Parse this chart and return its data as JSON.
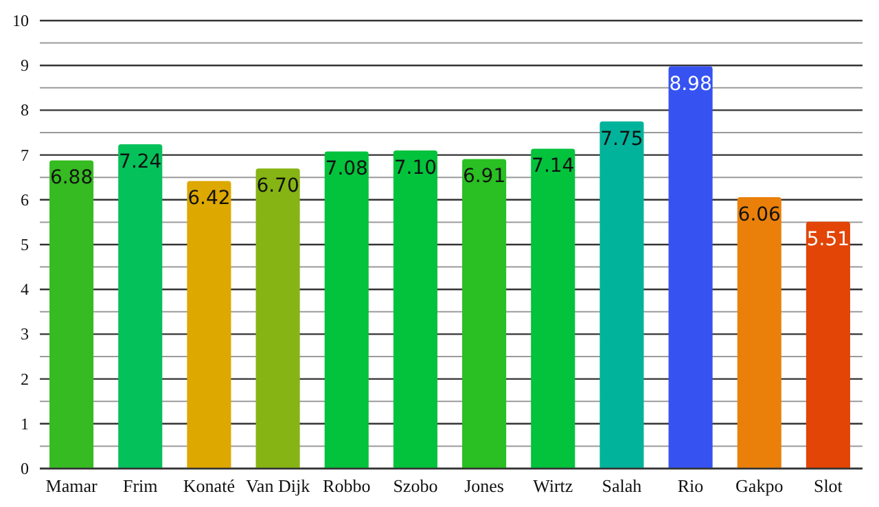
{
  "chart_data": {
    "type": "bar",
    "categories": [
      "Mamar",
      "Frim",
      "Konaté",
      "Van Dijk",
      "Robbo",
      "Szobo",
      "Jones",
      "Wirtz",
      "Salah",
      "Rio",
      "Gakpo",
      "Slot"
    ],
    "values": [
      6.88,
      7.24,
      6.42,
      6.7,
      7.08,
      7.1,
      6.91,
      7.14,
      7.75,
      8.98,
      6.06,
      5.51
    ],
    "value_labels": [
      "6.88",
      "7.24",
      "6.42",
      "6.70",
      "7.08",
      "7.10",
      "6.91",
      "7.14",
      "7.75",
      "8.98",
      "6.06",
      "5.51"
    ],
    "colors": [
      "#36bb22",
      "#04c159",
      "#dda800",
      "#86b414",
      "#03c23c",
      "#03c23c",
      "#2abf22",
      "#03c23c",
      "#02b39b",
      "#3653f2",
      "#ea800a",
      "#e24505"
    ],
    "ylim": [
      0,
      10
    ],
    "yticks": [
      0,
      {
        "value": 0.5,
        "label": null
      },
      1,
      {
        "value": 1.5,
        "label": null
      },
      2,
      {
        "value": 2.5,
        "label": null
      },
      3,
      {
        "value": 3.5,
        "label": null
      },
      4,
      {
        "value": 4.5,
        "label": null
      },
      5,
      {
        "value": 5.5,
        "label": null
      },
      6,
      {
        "value": 6.5,
        "label": null
      },
      7,
      {
        "value": 7.5,
        "label": null
      },
      8,
      {
        "value": 8.5,
        "label": null
      },
      9,
      {
        "value": 9.5,
        "label": null
      },
      10
    ],
    "grid": true
  }
}
